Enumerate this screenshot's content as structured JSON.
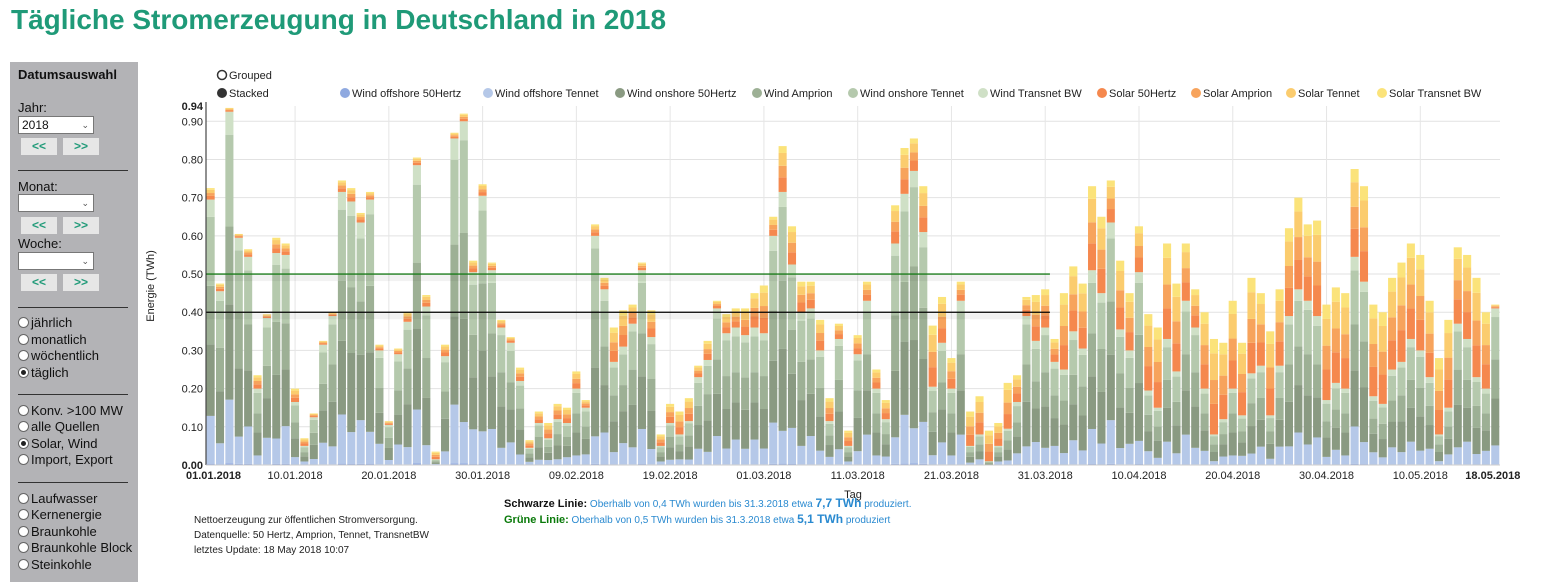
{
  "page": {
    "title": "Tägliche Stromerzeugung in Deutschland in 2018"
  },
  "sidebar": {
    "heading": "Datumsauswahl",
    "year_label": "Jahr:",
    "year_value": "2018",
    "month_label": "Monat:",
    "month_value": "",
    "week_label": "Woche:",
    "week_value": "",
    "prev_label": "<<",
    "next_label": ">>",
    "interval_options": [
      {
        "label": "jährlich",
        "selected": false
      },
      {
        "label": "monatlich",
        "selected": false
      },
      {
        "label": "wöchentlich",
        "selected": false
      },
      {
        "label": "täglich",
        "selected": true
      }
    ],
    "source_options": [
      {
        "label": "Konv. >100 MW",
        "selected": false
      },
      {
        "label": "alle Quellen",
        "selected": false
      },
      {
        "label": "Solar, Wind",
        "selected": true
      },
      {
        "label": "Import, Export",
        "selected": false
      }
    ],
    "fuel_options": [
      {
        "label": "Laufwasser",
        "selected": false
      },
      {
        "label": "Kernenergie",
        "selected": false
      },
      {
        "label": "Braunkohle",
        "selected": false
      },
      {
        "label": "Braunkohle Block",
        "selected": false
      },
      {
        "label": "Steinkohle",
        "selected": false
      }
    ]
  },
  "chart_mode": {
    "options": [
      {
        "label": "Grouped",
        "selected": false
      },
      {
        "label": "Stacked",
        "selected": true
      }
    ]
  },
  "footer": {
    "note_line1": "Nettoerzeugung zur öffentlichen Stromversorgung.",
    "note_line2": "Datenquelle: 50 Hertz, Amprion, Tennet, TransnetBW",
    "note_line3": "letztes Update: 18 May 2018 10:07",
    "black_line_label": "Schwarze Linie:",
    "black_line_text_before": " Oberhalb von 0,4 TWh wurden bis 31.3.2018 etwa ",
    "black_line_value": "7,7 TWh",
    "black_line_text_after": " produziert.",
    "green_line_label": "Grüne Linie:",
    "green_line_text_before": " Oberhalb von 0,5 TWh wurden bis 31.3.2018 etwa ",
    "green_line_value": "5,1 TWh",
    "green_line_text_after": " produziert"
  },
  "chart_data": {
    "type": "bar",
    "stacked": true,
    "title": "",
    "xlabel": "Tag",
    "ylabel": "Energie (TWh)",
    "ylim": [
      0,
      0.94
    ],
    "yticks": [
      "0.00",
      "0.10",
      "0.20",
      "0.30",
      "0.40",
      "0.50",
      "0.60",
      "0.70",
      "0.80",
      "0.90",
      "0.94"
    ],
    "grid": true,
    "legend_position": "top",
    "x_start": "01.01.2018",
    "x_end": "18.05.2018",
    "xtick_labels": [
      {
        "day_index": 0,
        "label": "01.01.2018",
        "bold": true
      },
      {
        "day_index": 9,
        "label": "10.01.2018",
        "bold": false
      },
      {
        "day_index": 19,
        "label": "20.01.2018",
        "bold": false
      },
      {
        "day_index": 29,
        "label": "30.01.2018",
        "bold": false
      },
      {
        "day_index": 39,
        "label": "09.02.2018",
        "bold": false
      },
      {
        "day_index": 49,
        "label": "19.02.2018",
        "bold": false
      },
      {
        "day_index": 59,
        "label": "01.03.2018",
        "bold": false
      },
      {
        "day_index": 69,
        "label": "11.03.2018",
        "bold": false
      },
      {
        "day_index": 79,
        "label": "21.03.2018",
        "bold": false
      },
      {
        "day_index": 89,
        "label": "31.03.2018",
        "bold": false
      },
      {
        "day_index": 99,
        "label": "10.04.2018",
        "bold": false
      },
      {
        "day_index": 109,
        "label": "20.04.2018",
        "bold": false
      },
      {
        "day_index": 119,
        "label": "30.04.2018",
        "bold": false
      },
      {
        "day_index": 129,
        "label": "10.05.2018",
        "bold": false
      },
      {
        "day_index": 137,
        "label": "18.05.2018",
        "bold": true
      }
    ],
    "series": [
      {
        "name": "Wind offshore 50Hertz",
        "color": "#8fa9e0"
      },
      {
        "name": "Wind offshore Tennet",
        "color": "#b5c8e8"
      },
      {
        "name": "Wind onshore 50Hertz",
        "color": "#8a9a82"
      },
      {
        "name": "Wind Amprion",
        "color": "#9db095"
      },
      {
        "name": "Wind onshore Tennet",
        "color": "#b5c9ad"
      },
      {
        "name": "Wind Transnet BW",
        "color": "#cfe0c6"
      },
      {
        "name": "Solar 50Hertz",
        "color": "#f5884e"
      },
      {
        "name": "Solar Amprion",
        "color": "#f7a35c"
      },
      {
        "name": "Solar Tennet",
        "color": "#fbcc6e"
      },
      {
        "name": "Solar Transnet BW",
        "color": "#fbe37a"
      }
    ],
    "wind_totals": [
      0.695,
      0.455,
      0.925,
      0.595,
      0.545,
      0.2,
      0.385,
      0.555,
      0.55,
      0.165,
      0.05,
      0.125,
      0.315,
      0.39,
      0.715,
      0.69,
      0.635,
      0.695,
      0.3,
      0.105,
      0.29,
      0.375,
      0.785,
      0.415,
      0.015,
      0.285,
      0.855,
      0.9,
      0.505,
      0.705,
      0.51,
      0.36,
      0.32,
      0.22,
      0.045,
      0.11,
      0.07,
      0.12,
      0.11,
      0.2,
      0.15,
      0.6,
      0.46,
      0.27,
      0.31,
      0.37,
      0.51,
      0.335,
      0.05,
      0.11,
      0.08,
      0.115,
      0.23,
      0.275,
      0.41,
      0.345,
      0.36,
      0.34,
      0.36,
      0.345,
      0.6,
      0.715,
      0.525,
      0.4,
      0.41,
      0.3,
      0.115,
      0.33,
      0.05,
      0.29,
      0.43,
      0.2,
      0.12,
      0.58,
      0.71,
      0.77,
      0.61,
      0.205,
      0.32,
      0.2,
      0.43,
      0.05,
      0.08,
      0.01,
      0.05,
      0.095,
      0.165,
      0.39,
      0.325,
      0.36,
      0.27,
      0.25,
      0.35,
      0.305,
      0.51,
      0.45,
      0.635,
      0.355,
      0.3,
      0.505,
      0.195,
      0.15,
      0.33,
      0.245,
      0.43,
      0.36,
      0.2,
      0.08,
      0.12,
      0.2,
      0.13,
      0.24,
      0.26,
      0.13,
      0.26,
      0.39,
      0.46,
      0.43,
      0.39,
      0.17,
      0.215,
      0.2,
      0.545,
      0.48,
      0.18,
      0.16,
      0.25,
      0.27,
      0.33,
      0.3,
      0.23,
      0.08,
      0.15,
      0.37,
      0.33,
      0.23,
      0.2,
      0.41
    ],
    "solar_totals": [
      0.03,
      0.02,
      0.01,
      0.01,
      0.02,
      0.035,
      0.01,
      0.04,
      0.03,
      0.035,
      0.02,
      0.01,
      0.01,
      0.01,
      0.03,
      0.035,
      0.025,
      0.02,
      0.015,
      0.01,
      0.015,
      0.025,
      0.02,
      0.03,
      0.02,
      0.03,
      0.015,
      0.02,
      0.03,
      0.03,
      0.02,
      0.02,
      0.015,
      0.035,
      0.02,
      0.03,
      0.04,
      0.04,
      0.04,
      0.045,
      0.02,
      0.03,
      0.03,
      0.09,
      0.095,
      0.05,
      0.02,
      0.07,
      0.03,
      0.05,
      0.06,
      0.06,
      0.03,
      0.05,
      0.02,
      0.05,
      0.05,
      0.07,
      0.09,
      0.125,
      0.05,
      0.12,
      0.1,
      0.08,
      0.07,
      0.08,
      0.06,
      0.04,
      0.04,
      0.05,
      0.05,
      0.05,
      0.05,
      0.1,
      0.12,
      0.085,
      0.12,
      0.16,
      0.12,
      0.08,
      0.05,
      0.09,
      0.1,
      0.08,
      0.06,
      0.12,
      0.07,
      0.05,
      0.12,
      0.1,
      0.06,
      0.2,
      0.17,
      0.17,
      0.22,
      0.2,
      0.11,
      0.18,
      0.15,
      0.12,
      0.2,
      0.21,
      0.25,
      0.23,
      0.15,
      0.1,
      0.2,
      0.25,
      0.2,
      0.23,
      0.19,
      0.25,
      0.19,
      0.22,
      0.2,
      0.23,
      0.24,
      0.2,
      0.25,
      0.25,
      0.25,
      0.25,
      0.23,
      0.25,
      0.24,
      0.24,
      0.24,
      0.26,
      0.25,
      0.25,
      0.2,
      0.2,
      0.23,
      0.2,
      0.22,
      0.26,
      0.2,
      0.01
    ],
    "reference_lines": [
      {
        "name": "Schwarze Linie",
        "value": 0.4,
        "color": "#000000",
        "until": "31.03.2018"
      },
      {
        "name": "Grüne Linie",
        "value": 0.5,
        "color": "#1a7a1a",
        "until": "31.03.2018"
      }
    ]
  }
}
